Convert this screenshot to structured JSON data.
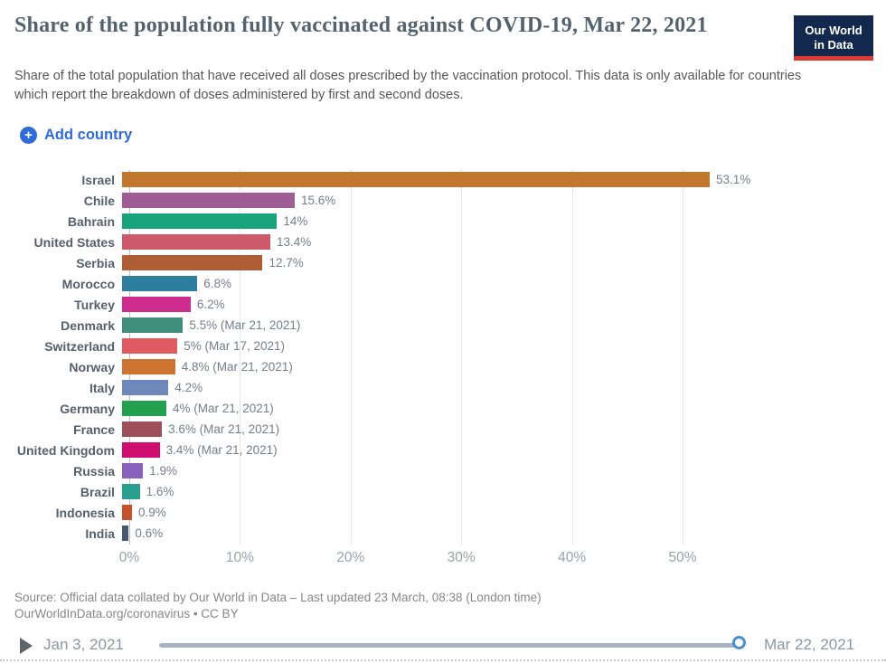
{
  "header": {
    "title": "Share of the population fully vaccinated against COVID-19, Mar 22, 2021",
    "subtitle": "Share of the total population that have received all doses prescribed by the vaccination protocol. This data is only available for countries which report the breakdown of doses administered by first and second doses.",
    "logo": {
      "line1": "Our World",
      "line2": "in Data",
      "bg_color": "#12294D",
      "accent_color": "#DC3A32"
    }
  },
  "toolbar": {
    "add_country_label": "Add country",
    "accent_color": "#2E6BD8"
  },
  "chart_data": {
    "type": "bar",
    "orientation": "horizontal",
    "categories": [
      "Israel",
      "Chile",
      "Bahrain",
      "United States",
      "Serbia",
      "Morocco",
      "Turkey",
      "Denmark",
      "Switzerland",
      "Norway",
      "Italy",
      "Germany",
      "France",
      "United Kingdom",
      "Russia",
      "Brazil",
      "Indonesia",
      "India"
    ],
    "values": [
      53.1,
      15.6,
      14,
      13.4,
      12.7,
      6.8,
      6.2,
      5.5,
      5,
      4.8,
      4.2,
      4,
      3.6,
      3.4,
      1.9,
      1.6,
      0.9,
      0.6
    ],
    "value_labels": [
      "53.1%",
      "15.6%",
      "14%",
      "13.4%",
      "12.7%",
      "6.8%",
      "6.2%",
      "5.5% (Mar 21, 2021)",
      "5% (Mar 17, 2021)",
      "4.8% (Mar 21, 2021)",
      "4.2%",
      "4% (Mar 21, 2021)",
      "3.6% (Mar 21, 2021)",
      "3.4% (Mar 21, 2021)",
      "1.9%",
      "1.6%",
      "0.9%",
      "0.6%"
    ],
    "bar_colors": [
      "#C2772E",
      "#A05C94",
      "#18A47B",
      "#CE5B6C",
      "#AE5D35",
      "#2E7E9F",
      "#CE2D8D",
      "#3E8E7B",
      "#DE5B62",
      "#CD7530",
      "#6D88B9",
      "#23A14E",
      "#9D5059",
      "#CF0D6E",
      "#8962BD",
      "#28A08D",
      "#C4522C",
      "#485870"
    ],
    "title": "Share of the population fully vaccinated against COVID-19, Mar 22, 2021",
    "xlabel": "",
    "ylabel": "",
    "xlim": [
      0,
      55
    ],
    "x_ticks": [
      "0%",
      "10%",
      "20%",
      "30%",
      "40%",
      "50%"
    ],
    "x_tick_values": [
      0,
      10,
      20,
      30,
      40,
      50
    ],
    "grid": true,
    "legend": false
  },
  "footer": {
    "source_line1": "Source: Official data collated by Our World in Data – Last updated 23 March, 08:38 (London time)",
    "source_line2": "OurWorldInData.org/coronavirus • CC BY"
  },
  "timeline": {
    "start_label": "Jan 3, 2021",
    "end_label": "Mar 22, 2021"
  }
}
